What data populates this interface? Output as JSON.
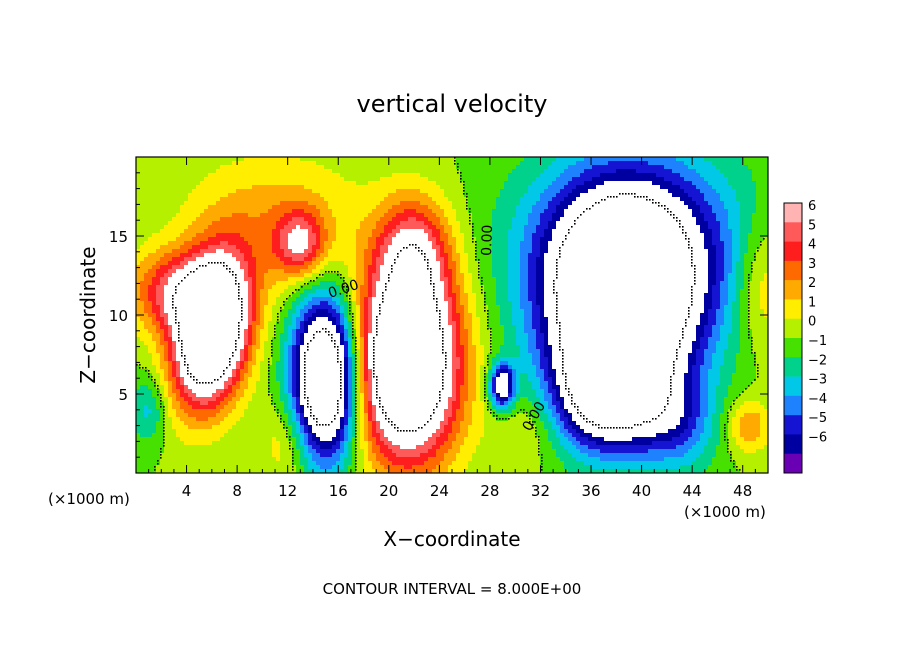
{
  "chart_data": {
    "type": "heatmap",
    "title": "vertical velocity",
    "xlabel": "X−coordinate",
    "ylabel": "Z−coordinate",
    "x_unit": "(×1000 m)",
    "x_unit_right": "(×1000 m)",
    "footer": "CONTOUR INTERVAL = 8.000E+00",
    "xlim": [
      0,
      50
    ],
    "ylim": [
      0,
      20
    ],
    "xticks": [
      "4",
      "8",
      "12",
      "16",
      "20",
      "24",
      "28",
      "32",
      "36",
      "40",
      "44",
      "48"
    ],
    "xtick_values": [
      4,
      8,
      12,
      16,
      20,
      24,
      28,
      32,
      36,
      40,
      44,
      48
    ],
    "yticks": [
      "5",
      "10",
      "15"
    ],
    "ytick_values": [
      5,
      10,
      15
    ],
    "contour_labels": [
      "0.00",
      "0.00",
      "0.00"
    ],
    "colorbar": {
      "labels": [
        "6",
        "5",
        "4",
        "3",
        "2",
        "1",
        "0",
        "−1",
        "−2",
        "−3",
        "−4",
        "−5",
        "−6"
      ],
      "colors": [
        "#ffb3b3",
        "#ff5a5a",
        "#ff1e1e",
        "#ff6a00",
        "#ffaa00",
        "#ffee00",
        "#b4f000",
        "#46e100",
        "#00d28c",
        "#00c8e6",
        "#1e82ff",
        "#1414d2",
        "#0000a0",
        "#6a00b4"
      ]
    },
    "features": [
      {
        "x": 6,
        "z": 9,
        "sx": 2.0,
        "sz": 3.2,
        "amp": 14,
        "tilt": -0.15
      },
      {
        "x": 3,
        "z": 11.5,
        "sx": 2.5,
        "sz": 1.8,
        "amp": 5
      },
      {
        "x": 13,
        "z": 14.5,
        "sx": 1.4,
        "sz": 1.5,
        "amp": 5
      },
      {
        "x": 11,
        "z": 16,
        "sx": 5,
        "sz": 3,
        "amp": 2.5
      },
      {
        "x": 15,
        "z": 6,
        "sx": 1.8,
        "sz": 3.5,
        "amp": -13
      },
      {
        "x": 21.5,
        "z": 7,
        "sx": 2.8,
        "sz": 4.2,
        "amp": 14
      },
      {
        "x": 22,
        "z": 14,
        "sx": 2,
        "sz": 2.5,
        "amp": 5
      },
      {
        "x": 29,
        "z": 5.5,
        "sx": 0.7,
        "sz": 1.0,
        "amp": -8
      },
      {
        "x": 38.5,
        "z": 11,
        "sx": 4.2,
        "sz": 4.5,
        "amp": -14
      },
      {
        "x": 37.5,
        "z": 5,
        "sx": 3.0,
        "sz": 2.5,
        "amp": -8
      },
      {
        "x": 40,
        "z": 15,
        "sx": 6.5,
        "sz": 4,
        "amp": -4
      },
      {
        "x": 43,
        "z": 3,
        "sx": 2,
        "sz": 2,
        "amp": -3
      },
      {
        "x": 48.5,
        "z": 3,
        "sx": 1.2,
        "sz": 1.2,
        "amp": 3
      },
      {
        "x": 49.5,
        "z": 12,
        "sx": 1.5,
        "sz": 3,
        "amp": 2.5
      },
      {
        "x": 1,
        "z": 4,
        "sx": 1,
        "sz": 1.5,
        "amp": -2.5
      },
      {
        "x": 12,
        "z": 2,
        "sx": 1.5,
        "sz": 2,
        "amp": 2
      },
      {
        "x": 31,
        "z": 3,
        "sx": 2,
        "sz": 2,
        "amp": 1.5
      }
    ]
  }
}
